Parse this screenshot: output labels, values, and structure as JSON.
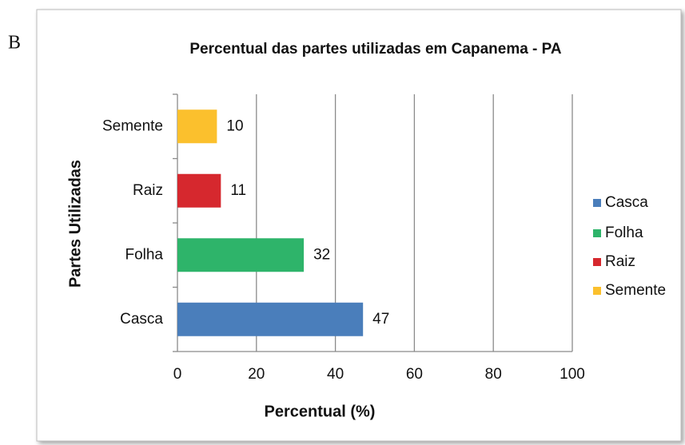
{
  "chart_data": {
    "type": "bar",
    "orientation": "horizontal",
    "panel_label": "B",
    "title": "Percentual das partes utilizadas em Capanema - PA",
    "x_label": "Percentual (%)",
    "y_label": "Partes Utilizadas",
    "categories": [
      "Casca",
      "Folha",
      "Raiz",
      "Semente"
    ],
    "values": [
      47,
      32,
      11,
      10
    ],
    "colors": [
      "#4a7ebb",
      "#2eb46a",
      "#d6282e",
      "#fbc02d"
    ],
    "xlim": [
      0,
      100
    ],
    "xticks": [
      0,
      20,
      40,
      60,
      80,
      100
    ],
    "grid": true,
    "legend": "right"
  }
}
